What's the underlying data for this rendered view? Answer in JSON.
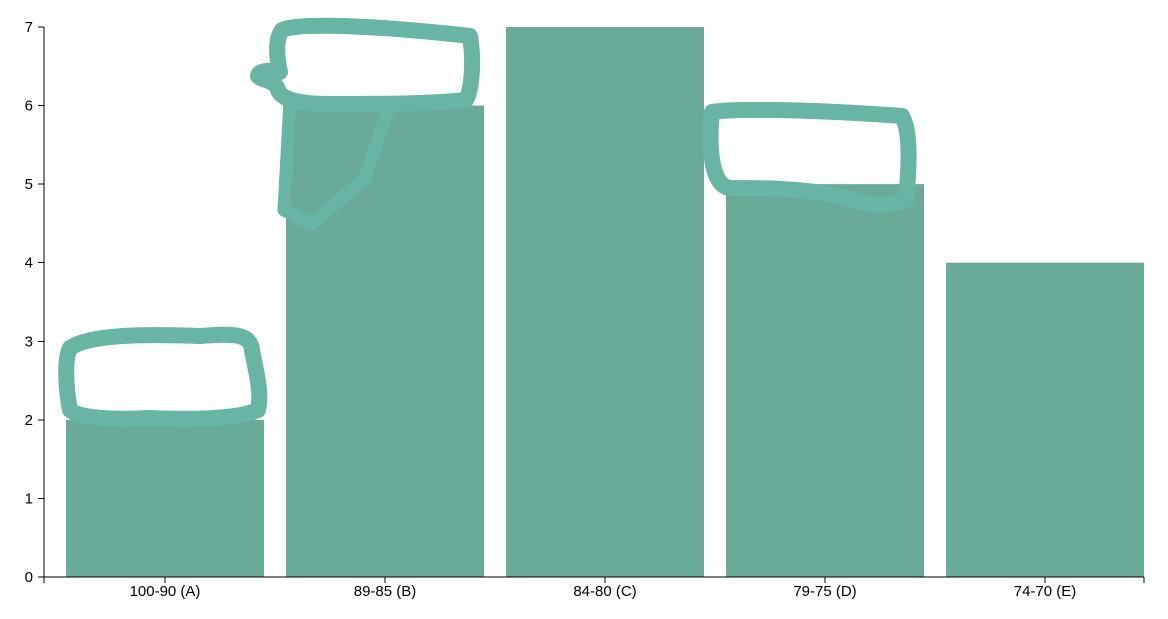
{
  "chart_data": {
    "type": "bar",
    "categories": [
      "100-90 (A)",
      "89-85 (B)",
      "84-80 (C)",
      "79-75 (D)",
      "74-70 (E)"
    ],
    "values": [
      2,
      6,
      7,
      5,
      4
    ],
    "ylim": [
      0,
      7
    ],
    "yticks": [
      "0",
      "1",
      "2",
      "3",
      "4",
      "5",
      "6",
      "7"
    ],
    "grid": false,
    "colors": {
      "bar": "#6aaa98",
      "marker": "#67b5a2",
      "axis": "#000000"
    }
  }
}
